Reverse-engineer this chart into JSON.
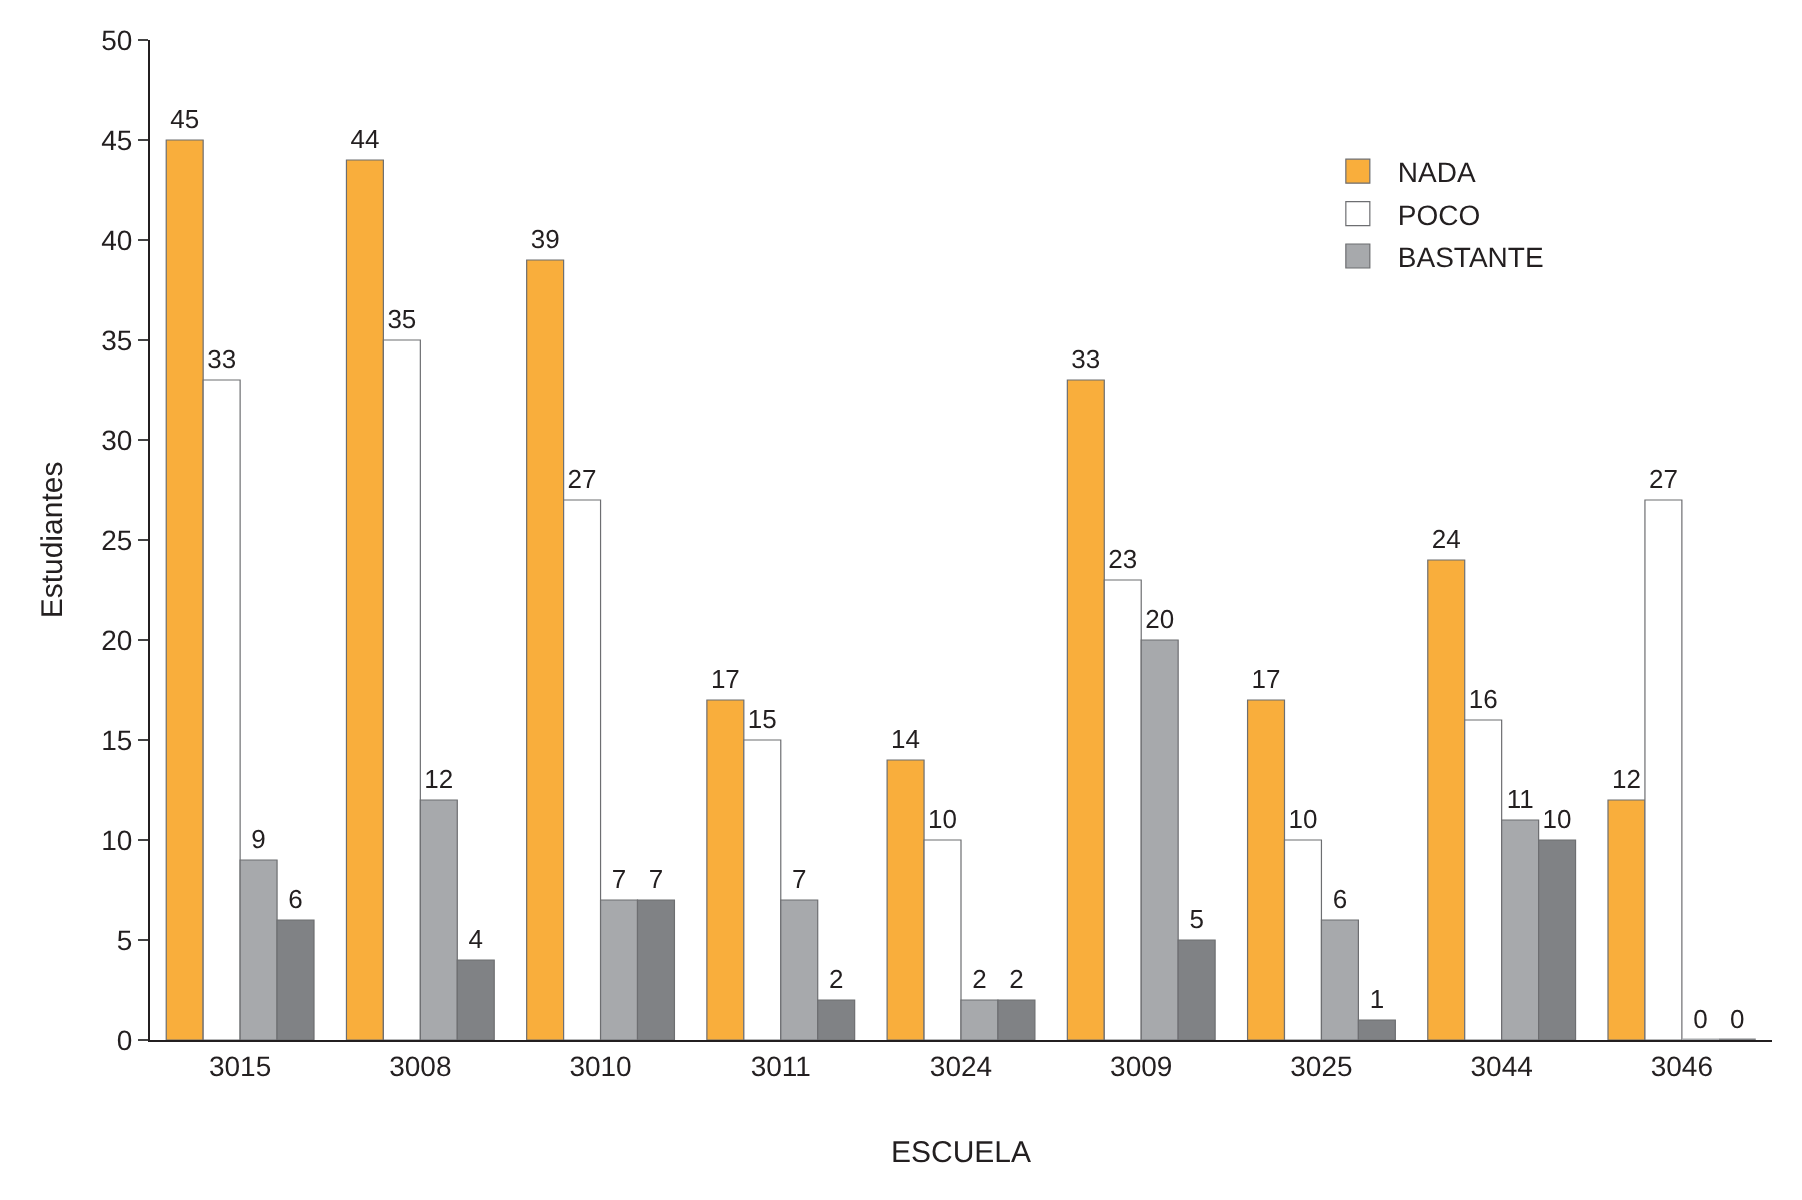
{
  "chart_data": {
    "type": "bar",
    "xlabel": "ESCUELA",
    "ylabel": "Estudiantes",
    "categories": [
      "3015",
      "3008",
      "3010",
      "3011",
      "3024",
      "3009",
      "3025",
      "3044",
      "3046"
    ],
    "series": [
      {
        "name": "NADA",
        "color": "#f9ae3c",
        "values": [
          45,
          44,
          39,
          17,
          14,
          33,
          17,
          24,
          12
        ]
      },
      {
        "name": "POCO",
        "color": "#ffffff",
        "values": [
          33,
          35,
          27,
          15,
          10,
          23,
          10,
          16,
          27
        ]
      },
      {
        "name": "BASTANTE",
        "color": "#a7a9ac",
        "values": [
          9,
          12,
          7,
          7,
          2,
          20,
          6,
          11,
          0
        ]
      },
      {
        "color": "#808285",
        "values": [
          6,
          4,
          7,
          2,
          2,
          5,
          1,
          10,
          0
        ]
      }
    ],
    "ylim": [
      0,
      50
    ],
    "yticks": [
      0,
      5,
      10,
      15,
      20,
      25,
      30,
      35,
      40,
      45,
      50
    ],
    "data_labels": true,
    "legend": "top right"
  }
}
